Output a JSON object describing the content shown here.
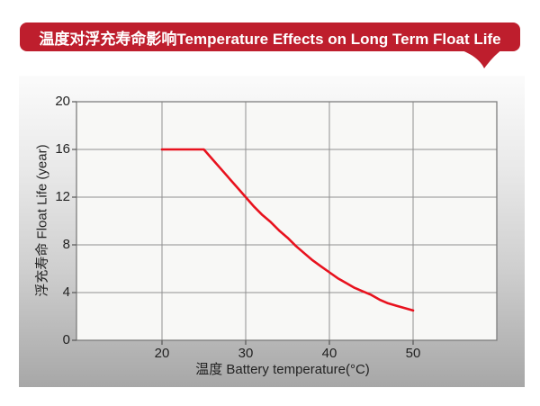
{
  "banner": {
    "title": "温度对浮充寿命影响Temperature Effects on Long Term Float Life",
    "bg_color": "#be1e2d",
    "text_color": "#ffffff"
  },
  "chart_data": {
    "type": "line",
    "title": "温度对浮充寿命影响Temperature Effects on Long Term Float Life",
    "xlabel": "温度  Battery temperature(°C)",
    "ylabel": "浮充寿命 Float Life (year)",
    "xlim": [
      10,
      60
    ],
    "ylim": [
      0,
      20
    ],
    "x_ticks": [
      20,
      30,
      40,
      50
    ],
    "y_ticks": [
      0,
      4,
      8,
      12,
      16,
      20
    ],
    "grid": true,
    "legend": "none",
    "line_color": "#e8121e",
    "grid_color": "#909090",
    "border_color": "#7d7d7d",
    "plot_bg_color": "#f8f8f6",
    "series": [
      {
        "name": "float-life-vs-temperature",
        "points": [
          [
            20,
            16
          ],
          [
            25,
            16
          ],
          [
            26,
            15.2
          ],
          [
            27,
            14.4
          ],
          [
            28,
            13.6
          ],
          [
            29,
            12.8
          ],
          [
            30,
            12
          ],
          [
            31,
            11.2
          ],
          [
            32,
            10.5
          ],
          [
            33,
            9.9
          ],
          [
            34,
            9.2
          ],
          [
            35,
            8.6
          ],
          [
            36,
            7.9
          ],
          [
            37,
            7.3
          ],
          [
            38,
            6.7
          ],
          [
            39,
            6.2
          ],
          [
            40,
            5.7
          ],
          [
            41,
            5.2
          ],
          [
            42,
            4.8
          ],
          [
            43,
            4.4
          ],
          [
            44,
            4.1
          ],
          [
            45,
            3.8
          ],
          [
            46,
            3.4
          ],
          [
            47,
            3.1
          ],
          [
            48,
            2.9
          ],
          [
            49,
            2.7
          ],
          [
            50,
            2.5
          ]
        ]
      }
    ]
  }
}
